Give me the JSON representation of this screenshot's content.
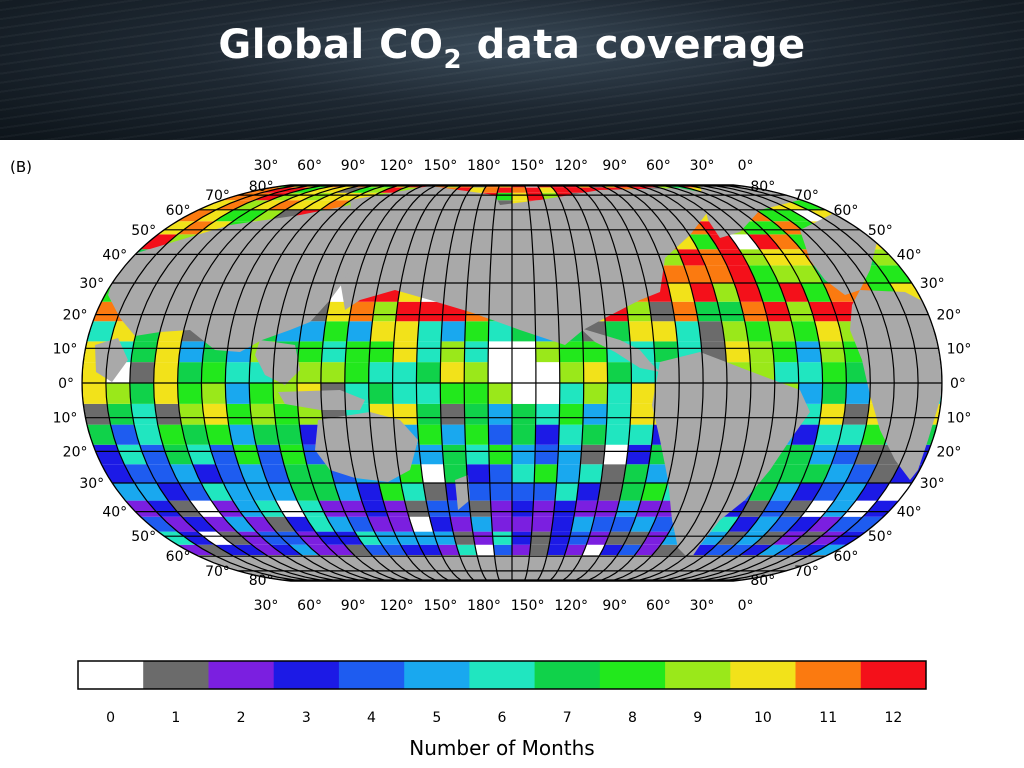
{
  "title": {
    "main": "Global CO",
    "sub": "2",
    "rest": " data coverage"
  },
  "panel_label": "(B)",
  "lon_labels_top": [
    "30°",
    "60°",
    "90°",
    "120°",
    "150°",
    "180°",
    "150°",
    "120°",
    "90°",
    "60°",
    "30°",
    "0°"
  ],
  "lon_labels_bottom": [
    "30°",
    "60°",
    "90°",
    "120°",
    "150°",
    "180°",
    "150°",
    "120°",
    "90°",
    "60°",
    "30°",
    "0°"
  ],
  "lat_labels_left": [
    "80°",
    "70°",
    "60°",
    "50°",
    "40°",
    "30°",
    "20°",
    "10°",
    "0°",
    "10°",
    "20°",
    "30°",
    "40°",
    "50°",
    "60°",
    "70°",
    "80°"
  ],
  "lat_labels_right": [
    "80°",
    "70°",
    "60°",
    "50°",
    "40°",
    "30°",
    "20°",
    "10°",
    "0°",
    "10°",
    "20°",
    "30°",
    "40°",
    "50°",
    "60°",
    "70°",
    "80°"
  ],
  "colorbar": {
    "colors": [
      "#ffffff",
      "#6b6b6b",
      "#7b1fe0",
      "#1c1ae6",
      "#1e5cf0",
      "#19a8ef",
      "#20e6c0",
      "#10d24a",
      "#22e81c",
      "#9ae81a",
      "#f2e21a",
      "#fb7a10",
      "#f4101a"
    ],
    "ticks": [
      "0",
      "1",
      "2",
      "3",
      "4",
      "5",
      "6",
      "7",
      "8",
      "9",
      "10",
      "11",
      "12"
    ],
    "label": "Number of Months"
  },
  "colors": {
    "land": "#a9a9a9",
    "grid": "#000000",
    "header_text": "#ffffff"
  }
}
